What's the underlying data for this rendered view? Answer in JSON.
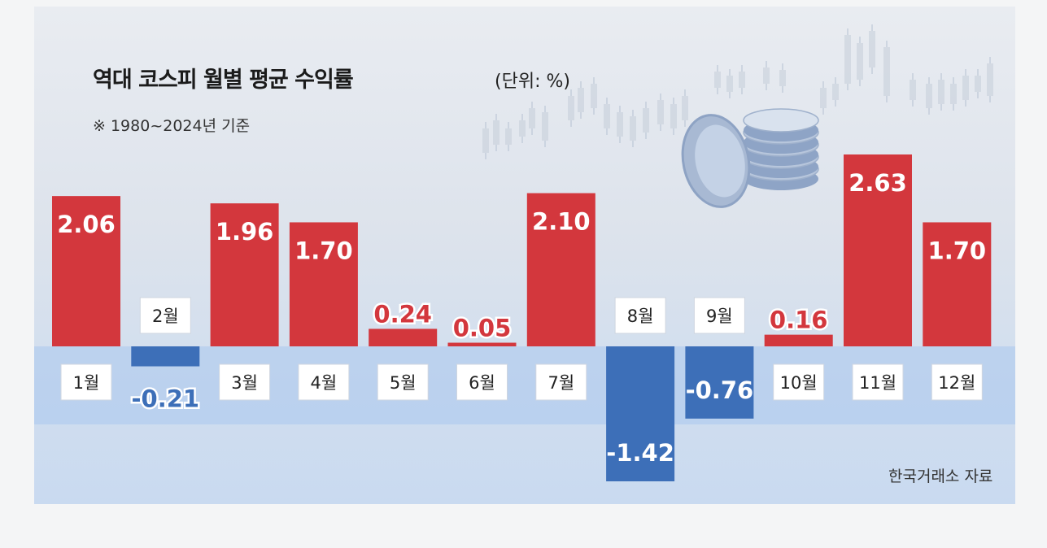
{
  "title": "역대 코스피 월별 평균 수익률",
  "unit": "(단위: %)",
  "note": "※ 1980~2024년 기준",
  "source": "한국거래소 자료",
  "colors": {
    "positive": "#d3373d",
    "negative": "#3d6fb8",
    "label_box": "#ffffff",
    "baseline_band": "#a9c7ee"
  },
  "chart_data": {
    "type": "bar",
    "categories": [
      "1월",
      "2월",
      "3월",
      "4월",
      "5월",
      "6월",
      "7월",
      "8월",
      "9월",
      "10월",
      "11월",
      "12월"
    ],
    "values": [
      2.06,
      -0.21,
      1.96,
      1.7,
      0.24,
      0.05,
      2.1,
      -1.42,
      -0.76,
      0.16,
      2.63,
      1.7
    ],
    "value_labels": [
      "2.06",
      "-0.21",
      "1.96",
      "1.70",
      "0.24",
      "0.05",
      "2.10",
      "-1.42",
      "-0.76",
      "0.16",
      "2.63",
      "1.70"
    ],
    "title": "역대 코스피 월별 평균 수익률",
    "xlabel": "",
    "ylabel": "",
    "grid": false,
    "legend": "none"
  }
}
